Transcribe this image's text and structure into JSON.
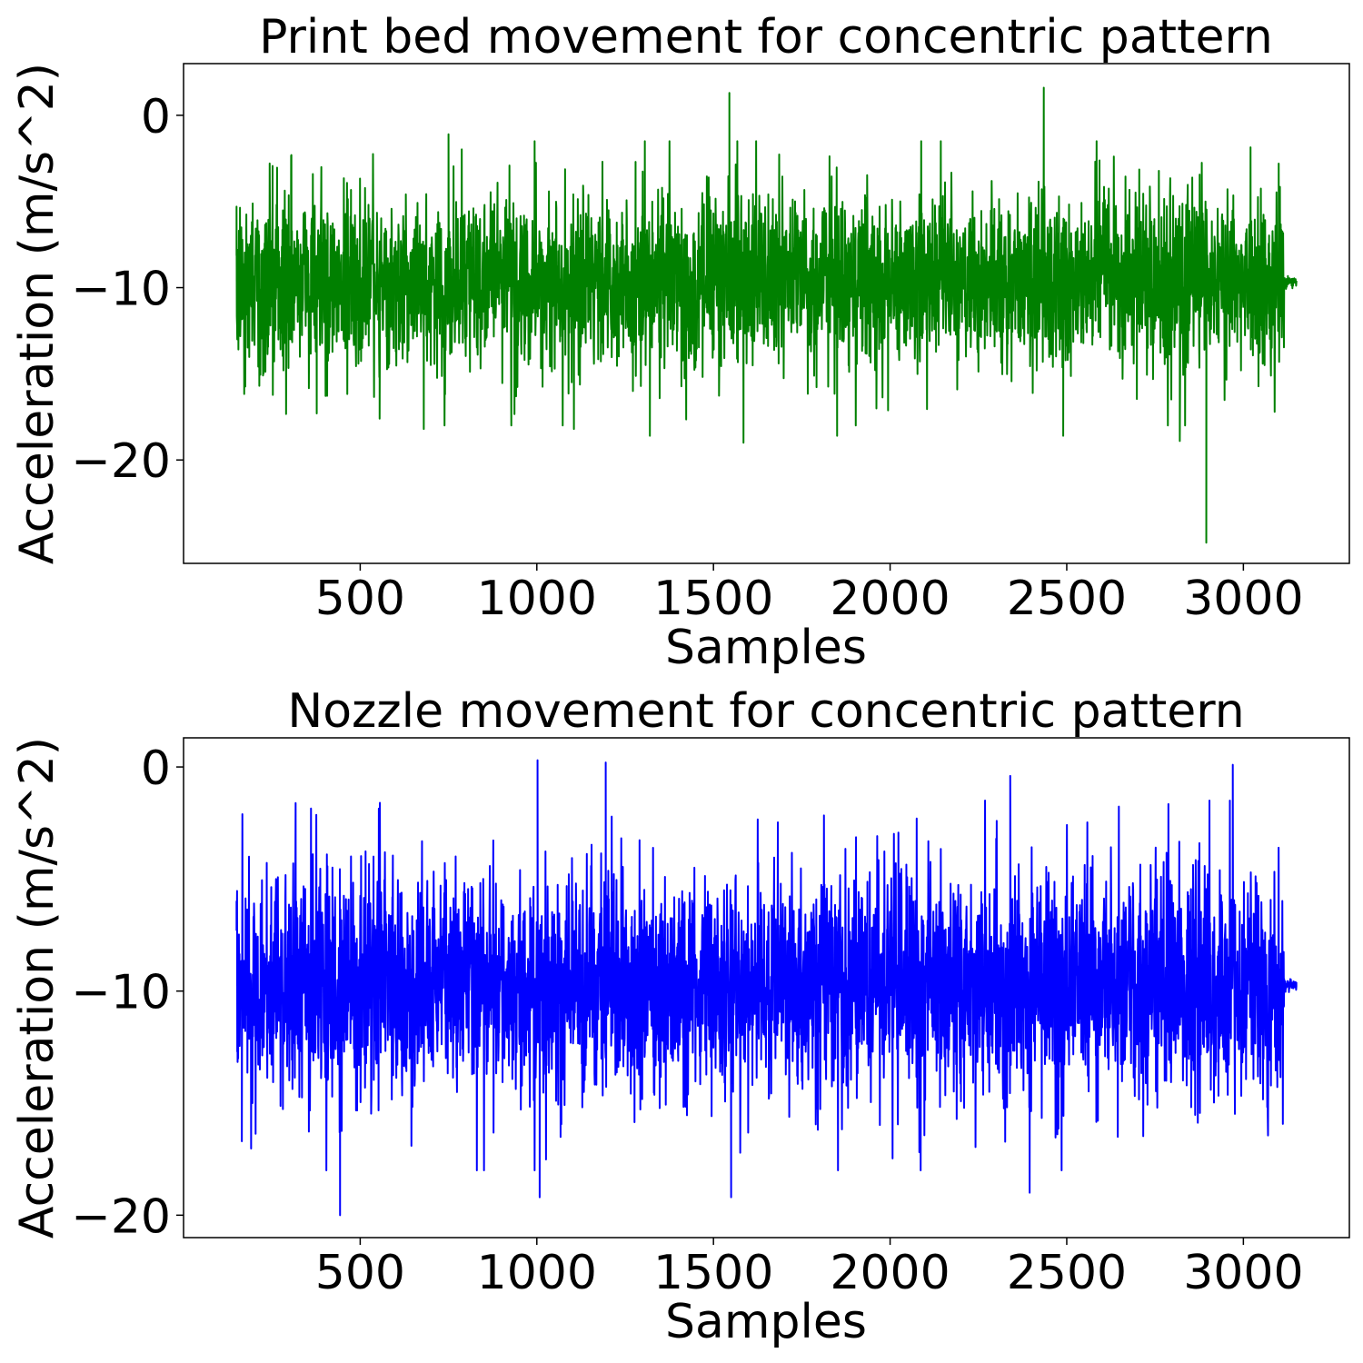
{
  "chart_data": [
    {
      "type": "line",
      "title": "Print bed movement for concentric pattern",
      "xlabel": "Samples",
      "ylabel": "Acceleration (m/s^2)",
      "xlim": [
        0,
        3300
      ],
      "ylim": [
        -26.0,
        3.0
      ],
      "xticks": [
        500,
        1000,
        1500,
        2000,
        2500,
        3000
      ],
      "yticks": [
        0,
        -10,
        -20
      ],
      "xtick_labels": [
        "500",
        "1000",
        "1500",
        "2000",
        "2500",
        "3000"
      ],
      "ytick_labels": [
        "0",
        "−10",
        "−20"
      ],
      "grid": false,
      "series": [
        {
          "color": "#008000",
          "x_range": [
            150,
            3150
          ],
          "baseline": -9.7,
          "keypoints": [
            {
              "x": 150,
              "y": -5.3
            },
            {
              "x": 152,
              "y": -13.0
            },
            {
              "x": 377,
              "y": -17.3
            },
            {
              "x": 555,
              "y": -17.6
            },
            {
              "x": 680,
              "y": -18.2
            },
            {
              "x": 750,
              "y": -1.1
            },
            {
              "x": 1105,
              "y": -18.2
            },
            {
              "x": 1320,
              "y": -18.6
            },
            {
              "x": 1545,
              "y": 1.3
            },
            {
              "x": 1585,
              "y": -19.0
            },
            {
              "x": 1850,
              "y": -18.6
            },
            {
              "x": 2435,
              "y": 1.6
            },
            {
              "x": 2490,
              "y": -18.6
            },
            {
              "x": 2820,
              "y": -18.9
            },
            {
              "x": 2895,
              "y": -24.8
            },
            {
              "x": 3100,
              "y": -2.8
            },
            {
              "x": 3135,
              "y": -9.6
            },
            {
              "x": 3150,
              "y": -9.6
            }
          ]
        }
      ]
    },
    {
      "type": "line",
      "title": "Nozzle movement for concentric pattern",
      "xlabel": "Samples",
      "ylabel": "Acceleration (m/s^2)",
      "xlim": [
        0,
        3300
      ],
      "ylim": [
        -21.0,
        1.3
      ],
      "xticks": [
        500,
        1000,
        1500,
        2000,
        2500,
        3000
      ],
      "yticks": [
        0,
        -10,
        -20
      ],
      "xtick_labels": [
        "500",
        "1000",
        "1500",
        "2000",
        "2500",
        "3000"
      ],
      "ytick_labels": [
        "0",
        "−10",
        "−20"
      ],
      "grid": false,
      "series": [
        {
          "color": "#0000ff",
          "x_range": [
            150,
            3150
          ],
          "baseline": -9.7,
          "keypoints": [
            {
              "x": 150,
              "y": -6.0
            },
            {
              "x": 152,
              "y": -12.7
            },
            {
              "x": 165,
              "y": -16.7
            },
            {
              "x": 443,
              "y": -20.0
            },
            {
              "x": 1002,
              "y": 0.3
            },
            {
              "x": 1008,
              "y": -19.2
            },
            {
              "x": 1550,
              "y": -19.2
            },
            {
              "x": 1195,
              "y": 0.2
            },
            {
              "x": 2340,
              "y": -0.4
            },
            {
              "x": 2395,
              "y": -19.0
            },
            {
              "x": 2970,
              "y": 0.1
            },
            {
              "x": 3100,
              "y": -4.8
            },
            {
              "x": 3135,
              "y": -9.7
            },
            {
              "x": 3150,
              "y": -9.6
            }
          ]
        }
      ]
    }
  ]
}
